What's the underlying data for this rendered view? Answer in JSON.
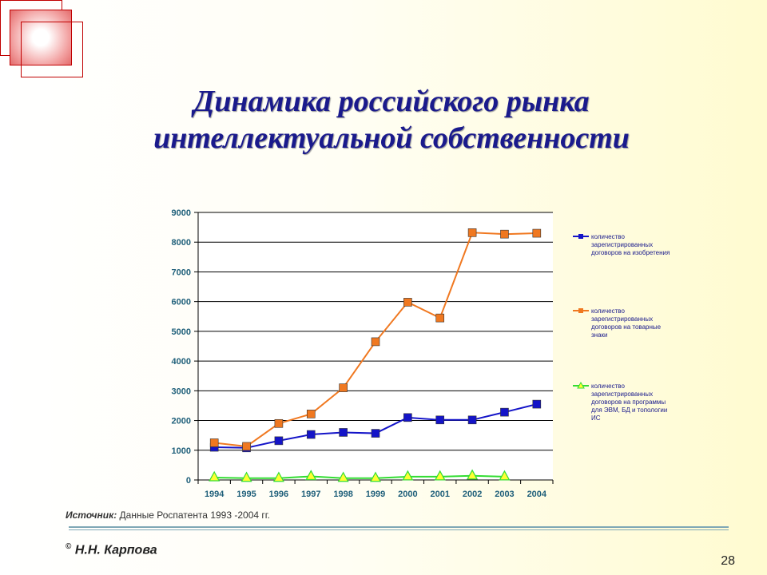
{
  "slide": {
    "title_line1": "Динамика российского рынка",
    "title_line2": "интеллектуальной собственности",
    "source_label": "Источник:",
    "source_text": " Данные  Роспатента 1993 -2004 гг.",
    "copyright": "©",
    "author": " Н.Н. Карпова",
    "page_number": "28"
  },
  "colors": {
    "title": "#1a1a8c",
    "axis_text": "#1f5f7a"
  },
  "chart_data": {
    "type": "line",
    "x": [
      "1994",
      "1995",
      "1996",
      "1997",
      "1998",
      "1999",
      "2000",
      "2001",
      "2002",
      "2003",
      "2004"
    ],
    "ylim": [
      0,
      9000
    ],
    "yticks": [
      0,
      1000,
      2000,
      3000,
      4000,
      5000,
      6000,
      7000,
      8000,
      9000
    ],
    "grid": true,
    "legend_position": "right",
    "series": [
      {
        "name": "количество зарегистрированных договоров на изобретения",
        "color": "#1414c8",
        "marker": "square",
        "values": [
          1100,
          1080,
          1320,
          1530,
          1600,
          1570,
          2100,
          2020,
          2020,
          2280,
          2550
        ]
      },
      {
        "name": "количество зарегистрированных договоров на товарные знаки",
        "color": "#f07820",
        "marker": "square",
        "values": [
          1250,
          1130,
          1900,
          2220,
          3100,
          4650,
          5980,
          5450,
          8320,
          8270,
          8300
        ]
      },
      {
        "name": "количество зарегистрированных договоров на программы для ЭВМ, БД и топологии ИС",
        "color": "#33dd33",
        "marker": "triangle",
        "values": [
          80,
          60,
          60,
          120,
          60,
          60,
          110,
          110,
          140,
          110,
          null
        ]
      }
    ]
  }
}
